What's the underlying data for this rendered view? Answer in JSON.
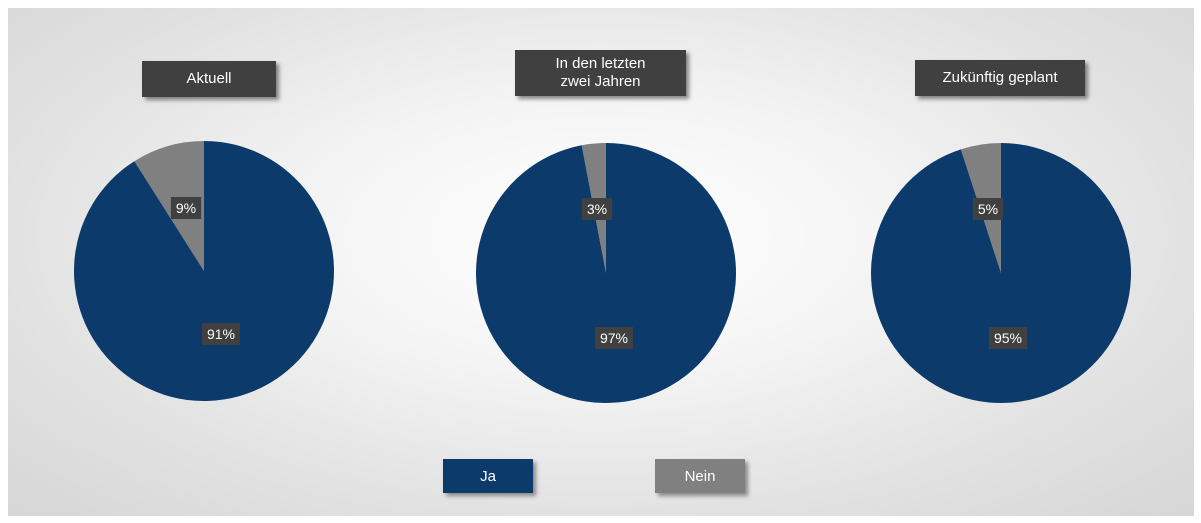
{
  "colors": {
    "ja": "#0c3b6b",
    "nein": "#808080",
    "label_bg": "#404040",
    "label_text": "#ffffff"
  },
  "chart_data": [
    {
      "type": "pie",
      "title": "Aktuell",
      "slices": [
        {
          "name": "Nein",
          "value": 9,
          "label": "9%"
        },
        {
          "name": "Ja",
          "value": 91,
          "label": "91%"
        }
      ]
    },
    {
      "type": "pie",
      "title": "In den letzten\nzwei Jahren",
      "slices": [
        {
          "name": "Nein",
          "value": 3,
          "label": "3%"
        },
        {
          "name": "Ja",
          "value": 97,
          "label": "97%"
        }
      ]
    },
    {
      "type": "pie",
      "title": "Zukünftig geplant",
      "slices": [
        {
          "name": "Nein",
          "value": 5,
          "label": "5%"
        },
        {
          "name": "Ja",
          "value": 95,
          "label": "95%"
        }
      ]
    }
  ],
  "legend": [
    {
      "label": "Ja",
      "color_key": "ja"
    },
    {
      "label": "Nein",
      "color_key": "nein"
    }
  ]
}
